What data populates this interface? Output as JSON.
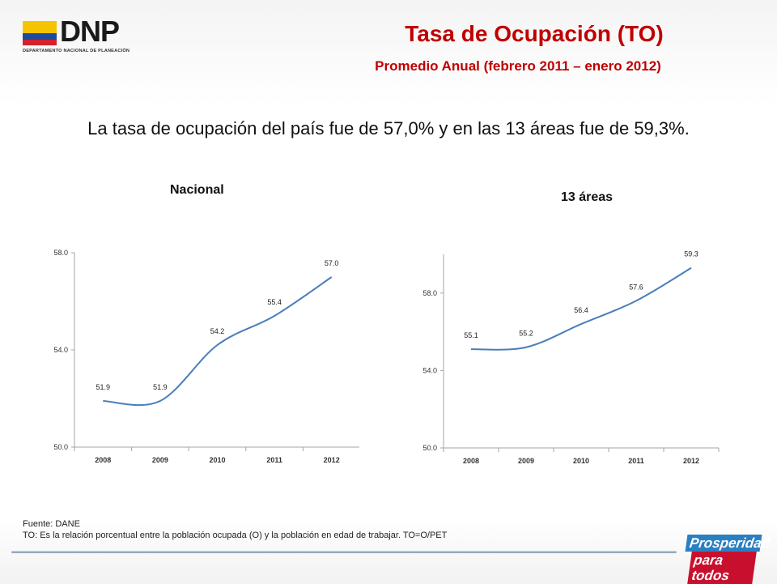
{
  "header": {
    "logo_text": "DNP",
    "logo_subtext": "DEPARTAMENTO NACIONAL DE PLANEACIÓN",
    "title": "Tasa de Ocupación (TO)",
    "subtitle": "Promedio Anual (febrero 2011 – enero 2012)"
  },
  "headline": "La tasa de ocupación del país fue de 57,0% y en las 13 áreas fue de 59,3%.",
  "footer": {
    "source": "Fuente: DANE",
    "note": "TO: Es la relación porcentual entre la población ocupada (O) y la población  en edad de trabajar. TO=O/PET"
  },
  "brand": {
    "line1": "Prosperidad",
    "line2": "para todos"
  },
  "colors": {
    "title_red": "#c00000",
    "line_blue": "#4a7ebb",
    "flag_yellow": "#f5c400",
    "flag_blue": "#1f4aa0",
    "flag_red": "#d2232a"
  },
  "chart_data": [
    {
      "type": "line",
      "title": "Nacional",
      "categories": [
        "2008",
        "2009",
        "2010",
        "2011",
        "2012"
      ],
      "values": [
        51.9,
        51.9,
        54.2,
        55.4,
        57.0
      ],
      "data_labels": [
        "51.9",
        "51.9",
        "54.2",
        "55.4",
        "57.0"
      ],
      "ylim": [
        50.0,
        58.0
      ],
      "yticks": [
        "50.0",
        "54.0",
        "58.0"
      ],
      "xlabel": "",
      "ylabel": "",
      "grid": false
    },
    {
      "type": "line",
      "title": "13 áreas",
      "categories": [
        "2008",
        "2009",
        "2010",
        "2011",
        "2012"
      ],
      "values": [
        55.1,
        55.2,
        56.4,
        57.6,
        59.3
      ],
      "data_labels": [
        "55.1",
        "55.2",
        "56.4",
        "57.6",
        "59.3"
      ],
      "ylim": [
        50.0,
        60.0
      ],
      "yticks": [
        "50.0",
        "54.0",
        "58.0"
      ],
      "xlabel": "",
      "ylabel": "",
      "grid": false
    }
  ]
}
